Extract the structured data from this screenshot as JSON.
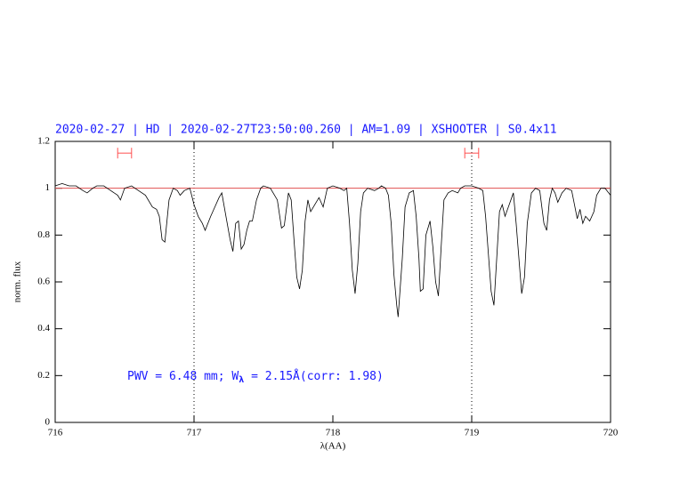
{
  "chart_data": {
    "type": "line",
    "title": "2020-02-27 | HD | 2020-02-27T23:50:00.260 | AM=1.09 | XSHOOTER | S0.4x11",
    "xlabel": "λ(AA)",
    "ylabel": "norm. flux",
    "annotation": [
      "PWV = 6.48 mm; W",
      "λ",
      " = 2.15Å(corr: 1.98)"
    ],
    "xlim": [
      716,
      720
    ],
    "xticks": [
      716,
      717,
      718,
      719,
      720
    ],
    "ylim": [
      0,
      1.2
    ],
    "yticks": [
      0,
      0.2,
      0.4,
      0.6,
      0.8,
      1,
      1.2
    ],
    "vlines": [
      717,
      719
    ],
    "hline": 1,
    "hline_color": "#e05050",
    "markers": [
      {
        "x": [
          716.45,
          716.55
        ],
        "y": 1.15
      },
      {
        "x": [
          718.95,
          719.05
        ],
        "y": 1.15
      }
    ],
    "marker_color": "#ff5050",
    "series": [
      {
        "color": "#000000",
        "x": [
          716.0,
          716.05,
          716.1,
          716.15,
          716.2,
          716.23,
          716.27,
          716.3,
          716.35,
          716.4,
          716.45,
          716.47,
          716.5,
          716.55,
          716.6,
          716.65,
          716.7,
          716.73,
          716.75,
          716.77,
          716.79,
          716.82,
          716.85,
          716.88,
          716.9,
          716.93,
          716.97,
          717.0,
          717.03,
          717.06,
          717.08,
          717.12,
          717.15,
          717.18,
          717.2,
          717.23,
          717.26,
          717.28,
          717.3,
          717.32,
          717.34,
          717.36,
          717.38,
          717.4,
          717.42,
          717.45,
          717.48,
          717.5,
          717.55,
          717.57,
          717.6,
          717.63,
          717.65,
          717.68,
          717.7,
          717.72,
          717.74,
          717.76,
          717.78,
          717.8,
          717.82,
          717.84,
          717.87,
          717.9,
          717.93,
          717.96,
          718.0,
          718.05,
          718.08,
          718.1,
          718.12,
          718.14,
          718.16,
          718.18,
          718.2,
          718.22,
          718.25,
          718.3,
          718.33,
          718.35,
          718.38,
          718.4,
          718.42,
          718.44,
          718.46,
          718.47,
          718.5,
          718.52,
          718.55,
          718.58,
          718.6,
          718.62,
          718.63,
          718.65,
          718.67,
          718.7,
          718.72,
          718.74,
          718.76,
          718.78,
          718.8,
          718.83,
          718.86,
          718.9,
          718.92,
          718.95,
          719.0,
          719.05,
          719.08,
          719.1,
          719.12,
          719.14,
          719.16,
          719.18,
          719.2,
          719.22,
          719.24,
          719.27,
          719.3,
          719.32,
          719.34,
          719.36,
          719.38,
          719.4,
          719.43,
          719.46,
          719.49,
          719.52,
          719.54,
          719.56,
          719.58,
          719.6,
          719.62,
          719.65,
          719.68,
          719.72,
          719.74,
          719.76,
          719.78,
          719.8,
          719.82,
          719.85,
          719.88,
          719.9,
          719.93,
          719.96,
          720.0
        ],
        "values": [
          1.01,
          1.02,
          1.01,
          1.01,
          0.99,
          0.98,
          1.0,
          1.01,
          1.01,
          0.99,
          0.97,
          0.95,
          1.0,
          1.01,
          0.99,
          0.97,
          0.92,
          0.91,
          0.88,
          0.78,
          0.77,
          0.95,
          1.0,
          0.99,
          0.97,
          0.99,
          1.0,
          0.93,
          0.88,
          0.85,
          0.82,
          0.88,
          0.92,
          0.96,
          0.98,
          0.88,
          0.78,
          0.73,
          0.85,
          0.86,
          0.74,
          0.76,
          0.82,
          0.86,
          0.86,
          0.95,
          1.0,
          1.01,
          1.0,
          0.98,
          0.95,
          0.83,
          0.84,
          0.98,
          0.95,
          0.78,
          0.62,
          0.57,
          0.65,
          0.86,
          0.95,
          0.9,
          0.93,
          0.96,
          0.92,
          1.0,
          1.01,
          1.0,
          0.99,
          1.0,
          0.85,
          0.65,
          0.55,
          0.68,
          0.9,
          0.98,
          1.0,
          0.99,
          1.0,
          1.01,
          1.0,
          0.97,
          0.85,
          0.63,
          0.5,
          0.45,
          0.7,
          0.92,
          0.98,
          0.99,
          0.88,
          0.7,
          0.56,
          0.57,
          0.8,
          0.86,
          0.75,
          0.6,
          0.54,
          0.75,
          0.95,
          0.98,
          0.99,
          0.98,
          1.0,
          1.01,
          1.01,
          1.0,
          0.99,
          0.88,
          0.72,
          0.56,
          0.5,
          0.7,
          0.9,
          0.93,
          0.88,
          0.93,
          0.98,
          0.85,
          0.7,
          0.55,
          0.62,
          0.85,
          0.98,
          1.0,
          0.99,
          0.85,
          0.82,
          0.95,
          1.0,
          0.98,
          0.94,
          0.98,
          1.0,
          0.99,
          0.93,
          0.87,
          0.91,
          0.85,
          0.88,
          0.86,
          0.9,
          0.97,
          1.0,
          1.0,
          0.97
        ]
      }
    ]
  }
}
